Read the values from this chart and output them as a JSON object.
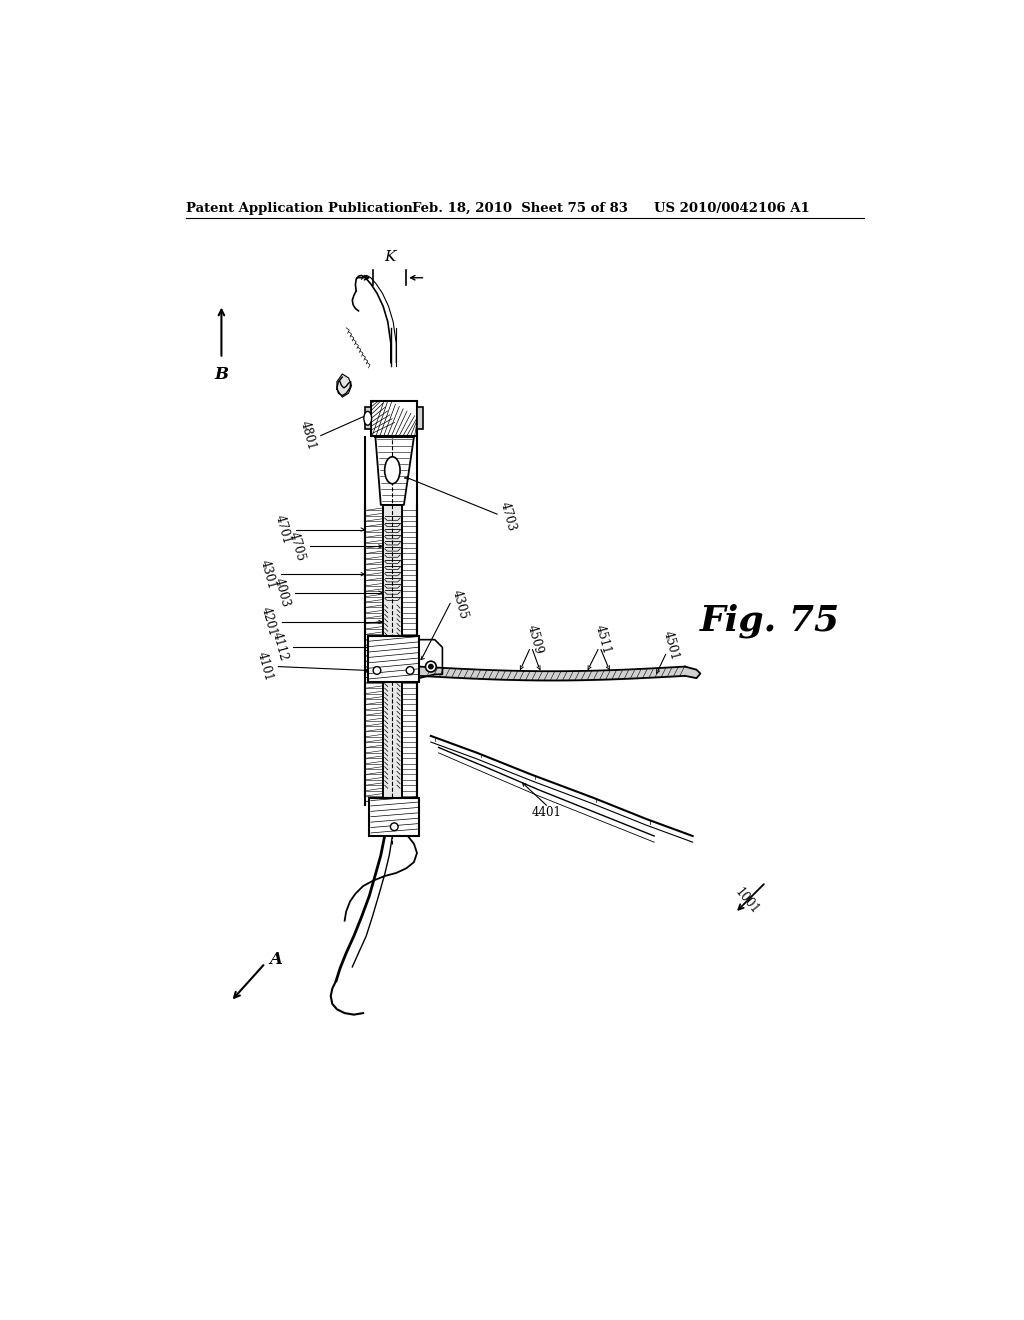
{
  "background_color": "#ffffff",
  "header_left": "Patent Application Publication",
  "header_center": "Feb. 18, 2010  Sheet 75 of 83",
  "header_right": "US 2010/0042106 A1",
  "fig_label": "Fig. 75",
  "dimension_label": "K"
}
